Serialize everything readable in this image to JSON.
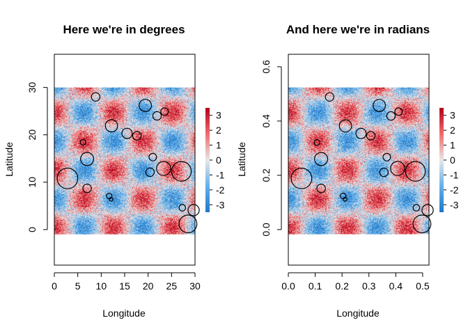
{
  "chart_data": [
    {
      "type": "heatmap",
      "title": "Here we're in degrees",
      "xlabel": "Longitude",
      "ylabel": "Latitude",
      "xlim": [
        0,
        30
      ],
      "ylim": [
        -7.5,
        37
      ],
      "xticks": [
        "0",
        "5",
        "10",
        "15",
        "20",
        "25",
        "30"
      ],
      "yticks": [
        "0",
        "10",
        "20",
        "30"
      ],
      "field_extent": {
        "x": [
          0,
          30
        ],
        "y": [
          -1,
          30
        ]
      },
      "legend": {
        "placement": "right",
        "ticks": [
          "3",
          "2",
          "1",
          "0",
          "-1",
          "-2",
          "-3"
        ],
        "range": [
          -3.5,
          3.5
        ]
      },
      "circles": [
        {
          "x": 8.8,
          "y": 28.0,
          "r": 0.9
        },
        {
          "x": 19.4,
          "y": 26.2,
          "r": 1.3
        },
        {
          "x": 23.5,
          "y": 24.9,
          "r": 0.8
        },
        {
          "x": 21.9,
          "y": 24.0,
          "r": 0.9
        },
        {
          "x": 12.2,
          "y": 21.9,
          "r": 1.3
        },
        {
          "x": 15.5,
          "y": 20.3,
          "r": 1.1
        },
        {
          "x": 17.6,
          "y": 19.8,
          "r": 0.9
        },
        {
          "x": 6.1,
          "y": 18.4,
          "r": 0.6
        },
        {
          "x": 21.0,
          "y": 15.3,
          "r": 0.8
        },
        {
          "x": 7.0,
          "y": 14.9,
          "r": 1.4
        },
        {
          "x": 23.3,
          "y": 12.9,
          "r": 1.5
        },
        {
          "x": 27.1,
          "y": 12.3,
          "r": 2.1
        },
        {
          "x": 20.4,
          "y": 12.1,
          "r": 0.9
        },
        {
          "x": 2.8,
          "y": 10.8,
          "r": 2.2
        },
        {
          "x": 7.0,
          "y": 8.7,
          "r": 0.9
        },
        {
          "x": 11.7,
          "y": 7.1,
          "r": 0.6
        },
        {
          "x": 12.1,
          "y": 6.4,
          "r": 0.4
        },
        {
          "x": 27.3,
          "y": 4.6,
          "r": 0.7
        },
        {
          "x": 29.7,
          "y": 4.1,
          "r": 1.2
        },
        {
          "x": 28.5,
          "y": 1.2,
          "r": 1.9
        }
      ]
    },
    {
      "type": "heatmap",
      "title": "And here we're in radians",
      "xlabel": "Longitude",
      "ylabel": "Latitude",
      "xlim": [
        0,
        0.5236
      ],
      "ylim": [
        -0.131,
        0.646
      ],
      "xticks": [
        "0.0",
        "0.1",
        "0.2",
        "0.3",
        "0.4",
        "0.5"
      ],
      "yticks": [
        "0.0",
        "0.2",
        "0.4",
        "0.6"
      ],
      "field_extent": {
        "x": [
          0,
          0.5236
        ],
        "y": [
          -0.0175,
          0.5236
        ]
      },
      "legend": {
        "placement": "right",
        "ticks": [
          "3",
          "2",
          "1",
          "0",
          "-1",
          "-2",
          "-3"
        ],
        "range": [
          -3.5,
          3.5
        ]
      },
      "circles": [
        {
          "x": 0.1536,
          "y": 0.4887,
          "r": 0.0157
        },
        {
          "x": 0.3386,
          "y": 0.4573,
          "r": 0.0227
        },
        {
          "x": 0.4102,
          "y": 0.4346,
          "r": 0.014
        },
        {
          "x": 0.3822,
          "y": 0.4189,
          "r": 0.0157
        },
        {
          "x": 0.2129,
          "y": 0.3822,
          "r": 0.0227
        },
        {
          "x": 0.2705,
          "y": 0.3543,
          "r": 0.0192
        },
        {
          "x": 0.3072,
          "y": 0.3456,
          "r": 0.0157
        },
        {
          "x": 0.1065,
          "y": 0.3211,
          "r": 0.0105
        },
        {
          "x": 0.3665,
          "y": 0.267,
          "r": 0.014
        },
        {
          "x": 0.1222,
          "y": 0.2601,
          "r": 0.0244
        },
        {
          "x": 0.4067,
          "y": 0.2251,
          "r": 0.0262
        },
        {
          "x": 0.473,
          "y": 0.2147,
          "r": 0.0367
        },
        {
          "x": 0.356,
          "y": 0.2112,
          "r": 0.0157
        },
        {
          "x": 0.0489,
          "y": 0.1885,
          "r": 0.0384
        },
        {
          "x": 0.1222,
          "y": 0.1518,
          "r": 0.0157
        },
        {
          "x": 0.2042,
          "y": 0.1239,
          "r": 0.0105
        },
        {
          "x": 0.2112,
          "y": 0.1117,
          "r": 0.007
        },
        {
          "x": 0.4765,
          "y": 0.0803,
          "r": 0.0122
        },
        {
          "x": 0.5184,
          "y": 0.0716,
          "r": 0.0209
        },
        {
          "x": 0.4974,
          "y": 0.0209,
          "r": 0.0332
        }
      ]
    }
  ]
}
